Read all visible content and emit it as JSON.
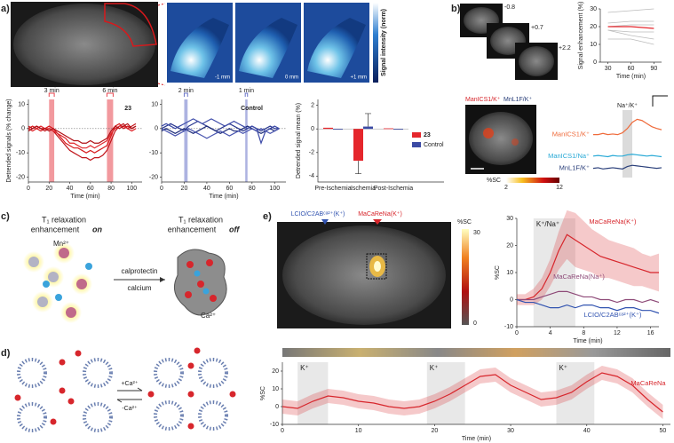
{
  "panel_labels": [
    "a)",
    "b)",
    "c)",
    "d)",
    "e)"
  ],
  "panel_a": {
    "slice_labels": [
      "-1 mm",
      "0 mm",
      "+1 mm"
    ],
    "colorbar_label": "Signal intensity (norm)"
  },
  "panel_b": {
    "slice_labels": [
      "-0.8",
      "+0.7",
      "+2.2"
    ],
    "map_labels": [
      "ManICS1/K⁺",
      "MnL1F/K⁺"
    ],
    "colorbar": {
      "label": "%SC",
      "ticks": [
        2,
        12
      ]
    }
  },
  "panel_c": {
    "left_line1": "T₁ relaxation",
    "left_line2": "enhancement",
    "left_state": "on",
    "right_line1": "T₁ relaxation",
    "right_line2": "enhancement",
    "right_state": "off",
    "ion_left": "Mn²⁺",
    "ion_right": "Ca²⁺",
    "arrow_top": "calprotectin",
    "arrow_bottom": "calcium"
  },
  "panel_d": {
    "arrows": [
      "+Ca²⁺",
      "-Ca²⁺"
    ]
  },
  "panel_e": {
    "probes": [
      "LCIO/C2ABᶜᵃ²⁺(K⁺)",
      "MaCaReNa(K⁺)"
    ],
    "colorbar": {
      "label": "%SC",
      "ticks": [
        30,
        0
      ]
    }
  },
  "chart_data": [
    {
      "type": "line",
      "xlabel": "Time (min)",
      "ylabel": "Detrended signals (% change)",
      "x": [
        0,
        4,
        8,
        12,
        16,
        20,
        24,
        28,
        32,
        36,
        40,
        44,
        48,
        52,
        56,
        60,
        64,
        68,
        72,
        76,
        80,
        84,
        88,
        92,
        96,
        100,
        104
      ],
      "xlim": [
        0,
        110
      ],
      "xticks": [
        0,
        20,
        40,
        60,
        80,
        100
      ],
      "ylim": [
        -22,
        12
      ],
      "yticks": [
        -20,
        -10,
        0,
        10
      ],
      "reference_line": 0,
      "region_color": "#e8454f",
      "regions": [
        {
          "start": 20,
          "end": 25,
          "label": "3 min"
        },
        {
          "start": 76,
          "end": 82,
          "label": "6 min"
        }
      ],
      "annotations": [
        "23"
      ],
      "series": [
        {
          "color": "#d7191c",
          "values": [
            0,
            1,
            0,
            -1,
            0,
            1,
            0,
            -2,
            -4,
            -6,
            -7,
            -8,
            -8,
            -9,
            -10,
            -9,
            -10,
            -9,
            -8,
            -7,
            -3,
            1,
            2,
            0,
            1,
            0,
            1
          ]
        },
        {
          "color": "#c0141a",
          "values": [
            1,
            0,
            1,
            0,
            -1,
            0,
            -1,
            -3,
            -5,
            -7,
            -9,
            -10,
            -11,
            -12,
            -12,
            -13,
            -12,
            -12,
            -11,
            -9,
            -5,
            -1,
            1,
            2,
            0,
            1,
            2
          ]
        },
        {
          "color": "#e0242a",
          "values": [
            0,
            -1,
            0,
            1,
            0,
            0,
            -1,
            -2,
            -3,
            -4,
            -6,
            -6,
            -7,
            -8,
            -8,
            -7,
            -8,
            -7,
            -6,
            -5,
            -2,
            0,
            1,
            1,
            0,
            -1,
            0
          ]
        },
        {
          "color": "#b01016",
          "values": [
            -1,
            0,
            1,
            0,
            0,
            -1,
            0,
            -1,
            -2,
            -3,
            -4,
            -5,
            -5,
            -6,
            -6,
            -5,
            -6,
            -6,
            -5,
            -4,
            -1,
            1,
            0,
            1,
            2,
            0,
            1
          ]
        }
      ]
    },
    {
      "type": "line",
      "xlabel": "Time (min)",
      "x": [
        0,
        4,
        8,
        12,
        16,
        20,
        24,
        28,
        32,
        36,
        40,
        44,
        48,
        52,
        56,
        60,
        64,
        68,
        72,
        76,
        80,
        84,
        88,
        92,
        96,
        100,
        104
      ],
      "xlim": [
        0,
        110
      ],
      "xticks": [
        0,
        20,
        40,
        60,
        80,
        100
      ],
      "ylim": [
        -22,
        12
      ],
      "yticks": [
        -20,
        -10,
        0,
        10
      ],
      "reference_line": 0,
      "region_color": "#6a74c9",
      "regions": [
        {
          "start": 20,
          "end": 23,
          "label": "2 min"
        },
        {
          "start": 74,
          "end": 76,
          "label": "1 min"
        }
      ],
      "annotations": [
        "Control"
      ],
      "series": [
        {
          "color": "#2b3990",
          "values": [
            0,
            1,
            2,
            1,
            0,
            -1,
            1,
            2,
            3,
            2,
            1,
            0,
            -1,
            0,
            1,
            2,
            1,
            0,
            -1,
            0,
            1,
            0,
            -1,
            0,
            1,
            0,
            0
          ]
        },
        {
          "color": "#1f2d7a",
          "values": [
            -1,
            0,
            -1,
            -2,
            -1,
            0,
            -1,
            -2,
            -1,
            0,
            1,
            0,
            -1,
            -2,
            -1,
            0,
            -1,
            -1,
            0,
            1,
            0,
            -1,
            -2,
            -1,
            0,
            -1,
            0
          ]
        },
        {
          "color": "#3c4aa8",
          "values": [
            1,
            2,
            1,
            0,
            1,
            2,
            3,
            4,
            3,
            2,
            3,
            4,
            3,
            2,
            1,
            2,
            3,
            2,
            1,
            0,
            1,
            0,
            -6,
            -1,
            0,
            1,
            0
          ]
        },
        {
          "color": "#4a56b0",
          "values": [
            0,
            -1,
            -2,
            -3,
            -2,
            -1,
            0,
            -1,
            -2,
            -3,
            -4,
            -3,
            -2,
            -1,
            -2,
            -3,
            -2,
            -1,
            -2,
            -1,
            0,
            -1,
            0,
            -1,
            -2,
            -1,
            0
          ]
        }
      ]
    },
    {
      "type": "bar",
      "ylabel": "Detrended signal mean (%)",
      "categories": [
        "Pre-Ischemia",
        "Ischemia",
        "Post-Ischemia"
      ],
      "ylim": [
        -4.5,
        2.5
      ],
      "yticks": [
        -4,
        -2,
        0,
        2
      ],
      "series": [
        {
          "name": "23",
          "color": "#e5262c",
          "values": [
            0.1,
            -2.7,
            0.05
          ],
          "errors": [
            0,
            1.1,
            0
          ]
        },
        {
          "name": "Control",
          "color": "#3b4aa4",
          "values": [
            0,
            0.2,
            0
          ],
          "errors": [
            0,
            1.1,
            0
          ]
        }
      ]
    },
    {
      "type": "line",
      "xlabel": "Time (min)",
      "ylabel": "Signal enhancement (%)",
      "x": [
        30,
        60,
        90
      ],
      "xlim": [
        20,
        100
      ],
      "xticks": [
        30,
        60,
        90
      ],
      "ylim": [
        0,
        30
      ],
      "yticks": [
        0,
        10,
        20,
        30
      ],
      "series": [
        {
          "color": "#bbbbbb",
          "values": [
            28,
            29,
            30
          ]
        },
        {
          "color": "#bbbbbb",
          "values": [
            22,
            23,
            23
          ]
        },
        {
          "color": "#bbbbbb",
          "values": [
            20,
            21,
            21
          ]
        },
        {
          "color": "#bbbbbb",
          "values": [
            18,
            17,
            17
          ]
        },
        {
          "color": "#bbbbbb",
          "values": [
            18,
            15,
            13
          ]
        },
        {
          "color": "#bbbbbb",
          "values": [
            13,
            13,
            10
          ]
        },
        {
          "color": "#e5262c",
          "values": [
            20,
            20,
            19
          ]
        }
      ]
    },
    {
      "type": "line",
      "axes": false,
      "x": [
        0,
        1,
        2,
        3,
        4,
        5,
        6,
        7,
        8,
        9,
        10,
        11,
        12,
        13,
        14
      ],
      "xlim": [
        0,
        14
      ],
      "ylim": [
        -3,
        8
      ],
      "region_color": "#bdbdbd",
      "regions": [
        {
          "start": 6,
          "end": 8,
          "label": "Na⁺/K⁺"
        }
      ],
      "series": [
        {
          "name": "ManICS1/K⁺",
          "color": "#ef6a3a",
          "values": [
            4,
            4,
            4.2,
            4,
            4.1,
            4,
            4.3,
            5,
            6,
            6.5,
            6.3,
            5.8,
            5.3,
            5,
            4.8
          ]
        },
        {
          "name": "ManICS1/Na⁺",
          "color": "#27a9d6",
          "values": [
            0.5,
            0.6,
            0.5,
            0.4,
            0.6,
            0.5,
            0.5,
            0.7,
            0.8,
            0.7,
            0.6,
            0.5,
            0.6,
            0.5,
            0.4
          ]
        },
        {
          "name": "MnL1F/K⁺",
          "color": "#2a3f7a",
          "values": [
            -1.5,
            -1.4,
            -1.6,
            -1.5,
            -1.4,
            -1.5,
            -1.6,
            -1.2,
            -1,
            -1.1,
            -1.2,
            -1.3,
            -1.4,
            -1.5,
            -1.4
          ]
        }
      ]
    },
    {
      "type": "line",
      "xlabel": "Time (min)",
      "ylabel": "%SC",
      "x": [
        0,
        1,
        2,
        3,
        4,
        5,
        6,
        7,
        8,
        9,
        10,
        11,
        12,
        13,
        14,
        15,
        16,
        17
      ],
      "xlim": [
        0,
        17
      ],
      "xticks": [
        0,
        4,
        8,
        12,
        16
      ],
      "ylim": [
        -10,
        30
      ],
      "yticks": [
        -10,
        0,
        10,
        20,
        30
      ],
      "region_color": "#d6d6d6",
      "regions": [
        {
          "start": 2,
          "end": 7,
          "label": "K⁺/Na⁺"
        }
      ],
      "series": [
        {
          "name": "MaCaReNa(K⁺)",
          "color": "#d7262c",
          "values": [
            0,
            0,
            1,
            4,
            10,
            18,
            24,
            22,
            20,
            18,
            16,
            15,
            14,
            13,
            12,
            11,
            10,
            10
          ],
          "upper": [
            2,
            2,
            4,
            8,
            15,
            25,
            33,
            32,
            29,
            26,
            24,
            22,
            21,
            20,
            19,
            17,
            16,
            17
          ],
          "lower": [
            -2,
            -2,
            -2,
            0,
            5,
            11,
            15,
            12,
            11,
            10,
            8,
            8,
            7,
            6,
            5,
            5,
            4,
            3
          ]
        },
        {
          "name": "MaCaReNa(Na⁺)",
          "color": "#8e4a78",
          "values": [
            0,
            0,
            0,
            1,
            2,
            3,
            3,
            2,
            1,
            1,
            0,
            0,
            -1,
            0,
            0,
            -1,
            0,
            -1
          ]
        },
        {
          "name": "LCIO/C2ABᶜᵃ²⁺(K⁺)",
          "color": "#3153b0",
          "values": [
            0,
            -1,
            -1,
            -2,
            -3,
            -3,
            -2,
            -3,
            -2,
            -2,
            -3,
            -3,
            -4,
            -3,
            -3,
            -4,
            -4,
            -5
          ]
        }
      ]
    },
    {
      "type": "line",
      "xlabel": "Time (min)",
      "ylabel": "%SC",
      "x": [
        0,
        2,
        4,
        6,
        8,
        10,
        12,
        14,
        16,
        18,
        20,
        22,
        24,
        26,
        28,
        30,
        32,
        34,
        36,
        38,
        40,
        42,
        44,
        46,
        48,
        50
      ],
      "xlim": [
        0,
        51
      ],
      "xticks": [
        0,
        10,
        20,
        30,
        40,
        50
      ],
      "ylim": [
        -10,
        25
      ],
      "yticks": [
        -10,
        0,
        10,
        20
      ],
      "region_color": "#d6d6d6",
      "regions": [
        {
          "start": 2,
          "end": 6,
          "label": "K⁺"
        },
        {
          "start": 19,
          "end": 24,
          "label": "K⁺"
        },
        {
          "start": 36,
          "end": 41,
          "label": "K⁺"
        }
      ],
      "series": [
        {
          "name": "MaCaReNa",
          "color": "#d7262c",
          "values": [
            0,
            -1,
            3,
            6,
            5,
            3,
            2,
            0,
            -1,
            0,
            3,
            7,
            12,
            17,
            18,
            12,
            8,
            4,
            5,
            8,
            14,
            19,
            17,
            12,
            4,
            -3
          ],
          "upper": [
            4,
            3,
            7,
            10,
            9,
            7,
            6,
            4,
            3,
            4,
            7,
            11,
            16,
            21,
            22,
            16,
            12,
            8,
            9,
            12,
            18,
            23,
            21,
            16,
            8,
            1
          ],
          "lower": [
            -4,
            -5,
            -1,
            2,
            1,
            -1,
            -2,
            -4,
            -5,
            -4,
            -1,
            3,
            8,
            13,
            14,
            8,
            4,
            0,
            1,
            4,
            10,
            15,
            13,
            8,
            0,
            -7
          ]
        }
      ]
    }
  ]
}
